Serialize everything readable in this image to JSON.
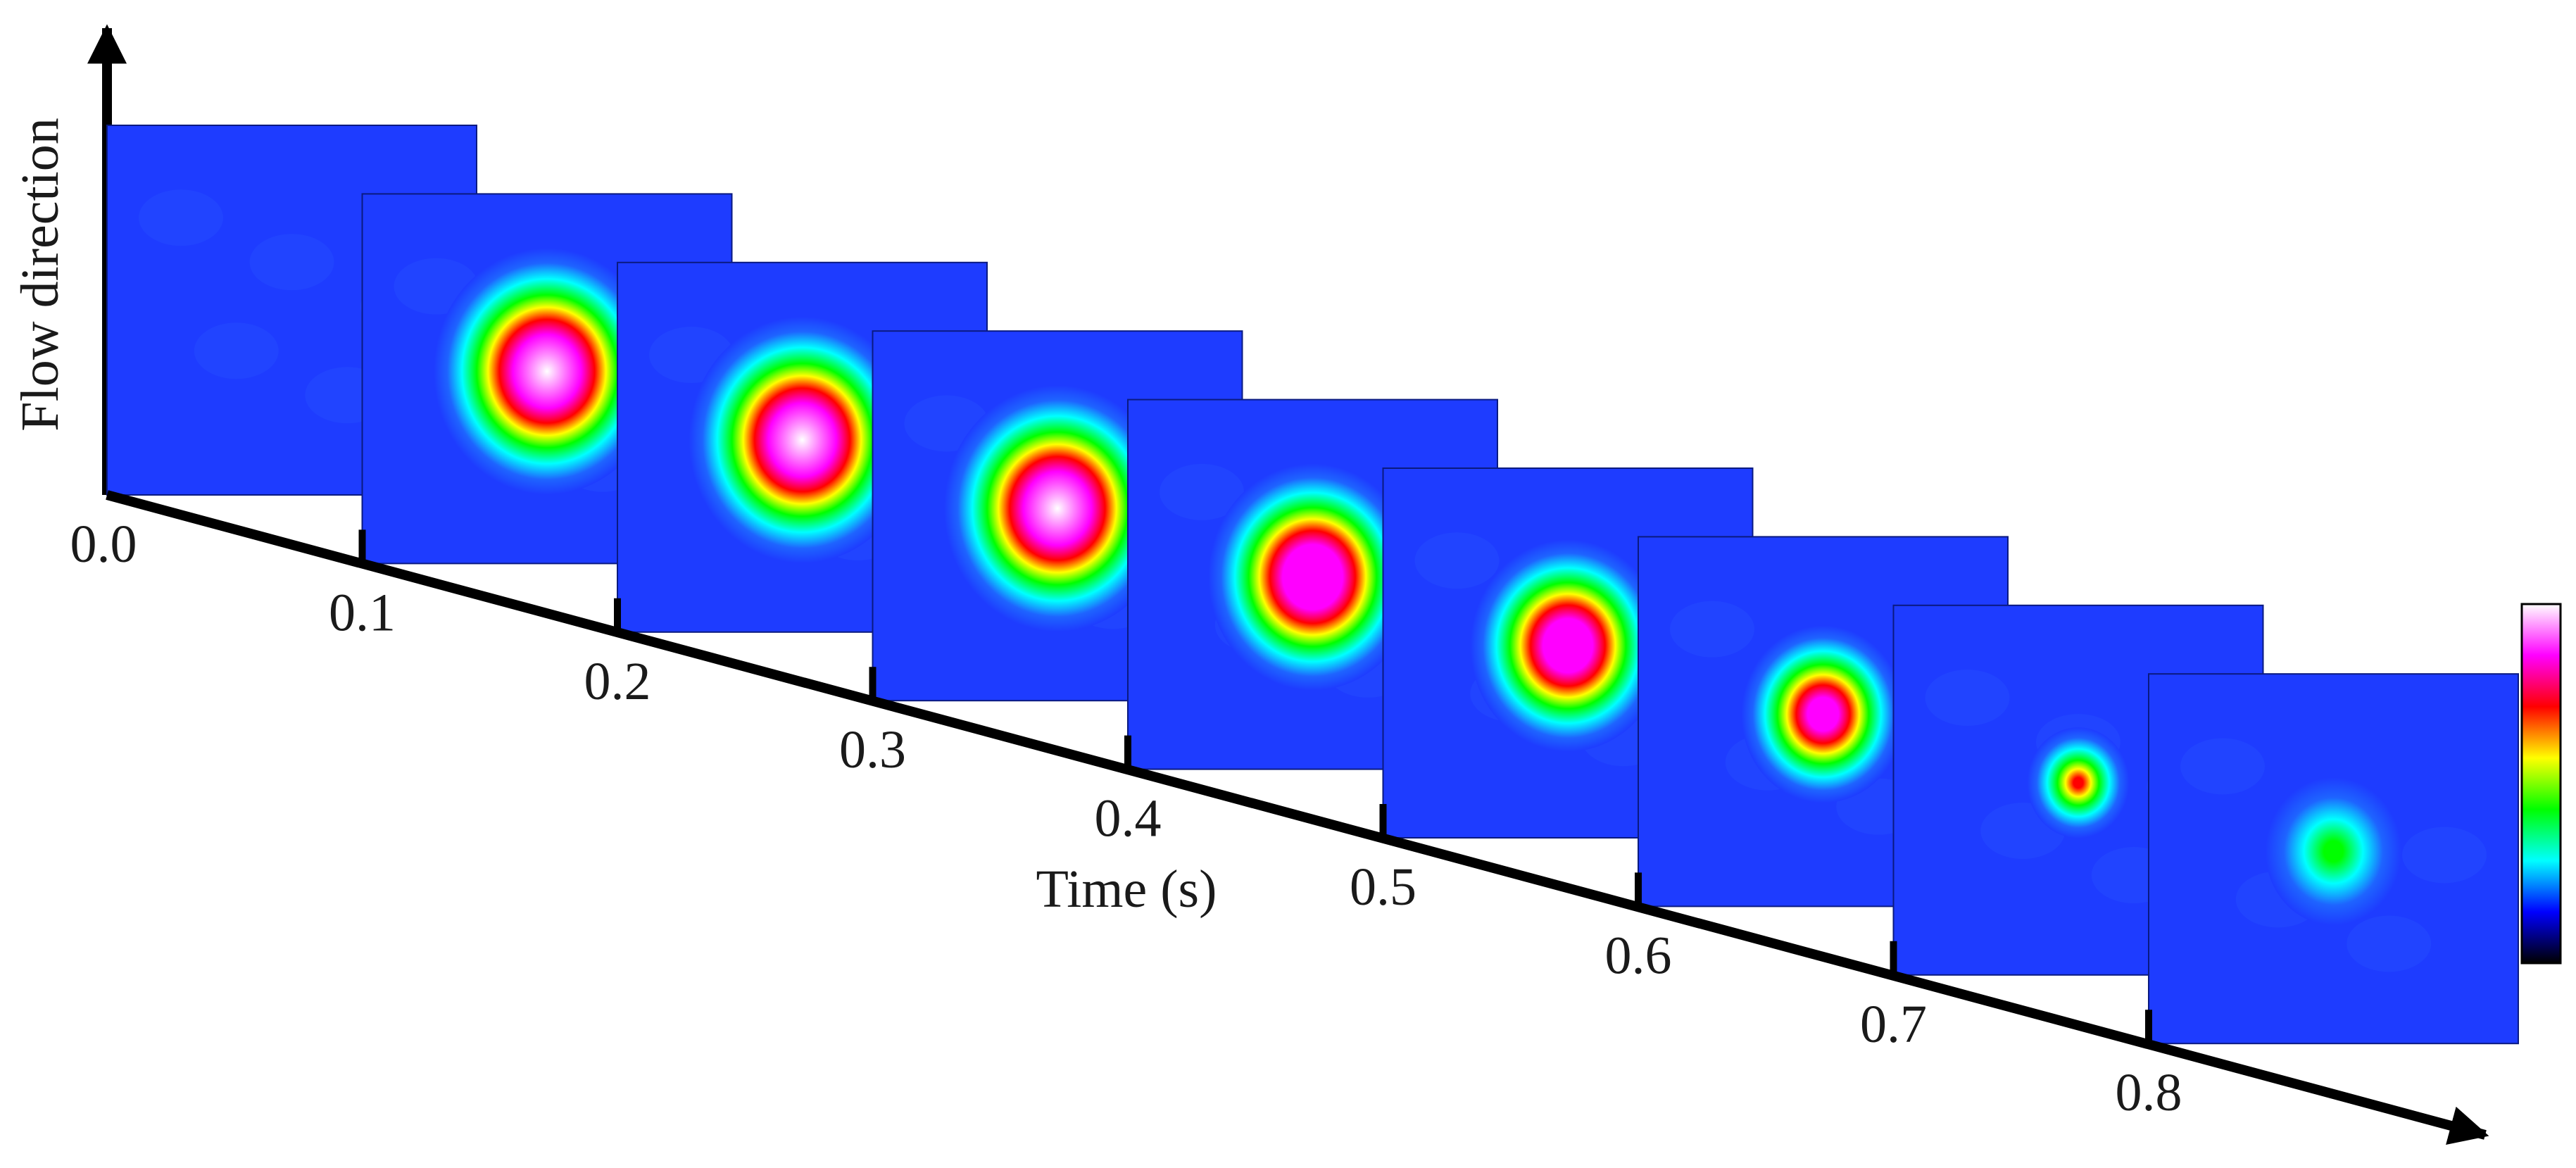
{
  "axes": {
    "y_title": "Flow direction",
    "x_title": "Time (s)",
    "time_ticks": [
      "0.0",
      "0.1",
      "0.2",
      "0.3",
      "0.4",
      "0.5",
      "0.6",
      "0.7",
      "0.8"
    ]
  },
  "frames": [
    {
      "time": "0.0",
      "intensity": 0.0,
      "spot_size": 0.0
    },
    {
      "time": "0.1",
      "intensity": 1.0,
      "spot_size": 1.0
    },
    {
      "time": "0.2",
      "intensity": 1.0,
      "spot_size": 1.0
    },
    {
      "time": "0.3",
      "intensity": 1.0,
      "spot_size": 1.0
    },
    {
      "time": "0.4",
      "intensity": 0.97,
      "spot_size": 0.92
    },
    {
      "time": "0.5",
      "intensity": 0.9,
      "spot_size": 0.86
    },
    {
      "time": "0.6",
      "intensity": 0.78,
      "spot_size": 0.72
    },
    {
      "time": "0.7",
      "intensity": 0.42,
      "spot_size": 0.45
    },
    {
      "time": "0.8",
      "intensity": 0.1,
      "spot_size": 0.6
    }
  ],
  "colorbar": {
    "colors": [
      "#000000",
      "#0000ff",
      "#00ffff",
      "#00ff00",
      "#ffff00",
      "#ff0000",
      "#ff00ff",
      "#ffffff"
    ]
  }
}
